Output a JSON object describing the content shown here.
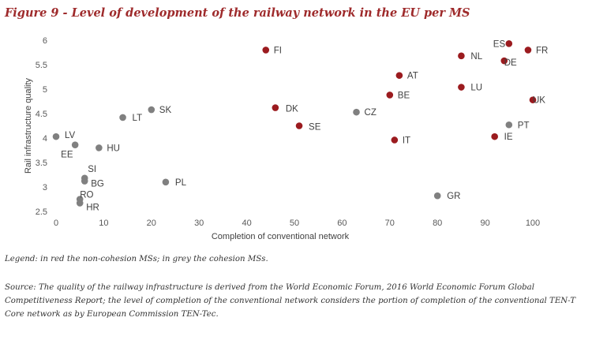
{
  "figure_title": "Figure 9 - Level of development of the railway network in the EU per MS",
  "legend_note": "Legend: in red the non-cohesion MSs; in grey the cohesion MSs.",
  "source_note": "Source: The quality of the railway infrastructure is derived from the World Economic Forum, 2016 World Economic Forum Global Competitiveness Report; the level of completion of the conventional network considers the portion of completion of the conventional TEN-T Core network as by European Commission TEN-Tec.",
  "colors": {
    "non_cohesion": "#9b1b1f",
    "cohesion": "#808080"
  },
  "chart_data": {
    "type": "scatter",
    "title": "",
    "xlabel": "Completion of conventional network",
    "ylabel": "Rail infrastructure quality",
    "xlim": [
      0,
      100
    ],
    "ylim": [
      2.5,
      6
    ],
    "xticks": [
      "0",
      "10",
      "20",
      "30",
      "40",
      "50",
      "60",
      "70",
      "80",
      "90",
      "100"
    ],
    "yticks": [
      "2.5",
      "3",
      "3.5",
      "4",
      "4.5",
      "5",
      "5.5",
      "6"
    ],
    "grid": false,
    "points": [
      {
        "label": "FI",
        "x": 44,
        "y": 5.8,
        "group": "non_cohesion"
      },
      {
        "label": "DK",
        "x": 46,
        "y": 4.62,
        "group": "non_cohesion"
      },
      {
        "label": "SE",
        "x": 51,
        "y": 4.25,
        "group": "non_cohesion"
      },
      {
        "label": "AT",
        "x": 72,
        "y": 5.28,
        "group": "non_cohesion"
      },
      {
        "label": "BE",
        "x": 70,
        "y": 4.88,
        "group": "non_cohesion"
      },
      {
        "label": "IT",
        "x": 71,
        "y": 3.96,
        "group": "non_cohesion"
      },
      {
        "label": "NL",
        "x": 85,
        "y": 5.68,
        "group": "non_cohesion"
      },
      {
        "label": "LU",
        "x": 85,
        "y": 5.04,
        "group": "non_cohesion"
      },
      {
        "label": "ES",
        "x": 95,
        "y": 5.93,
        "group": "non_cohesion"
      },
      {
        "label": "FR",
        "x": 99,
        "y": 5.8,
        "group": "non_cohesion"
      },
      {
        "label": "DE",
        "x": 94,
        "y": 5.58,
        "group": "non_cohesion"
      },
      {
        "label": "UK",
        "x": 100,
        "y": 4.78,
        "group": "non_cohesion"
      },
      {
        "label": "IE",
        "x": 92,
        "y": 4.03,
        "group": "non_cohesion"
      },
      {
        "label": "LV",
        "x": 0,
        "y": 4.03,
        "group": "cohesion"
      },
      {
        "label": "EE",
        "x": 4,
        "y": 3.86,
        "group": "cohesion"
      },
      {
        "label": "HU",
        "x": 9,
        "y": 3.8,
        "group": "cohesion"
      },
      {
        "label": "LT",
        "x": 14,
        "y": 4.42,
        "group": "cohesion"
      },
      {
        "label": "SK",
        "x": 20,
        "y": 4.58,
        "group": "cohesion"
      },
      {
        "label": "SI",
        "x": 6,
        "y": 3.18,
        "group": "cohesion"
      },
      {
        "label": "BG",
        "x": 6,
        "y": 3.12,
        "group": "cohesion"
      },
      {
        "label": "RO",
        "x": 5,
        "y": 2.75,
        "group": "cohesion"
      },
      {
        "label": "HR",
        "x": 5,
        "y": 2.67,
        "group": "cohesion"
      },
      {
        "label": "PL",
        "x": 23,
        "y": 3.1,
        "group": "cohesion"
      },
      {
        "label": "CZ",
        "x": 63,
        "y": 4.53,
        "group": "cohesion"
      },
      {
        "label": "GR",
        "x": 80,
        "y": 2.82,
        "group": "cohesion"
      },
      {
        "label": "PT",
        "x": 95,
        "y": 4.27,
        "group": "cohesion"
      }
    ]
  }
}
